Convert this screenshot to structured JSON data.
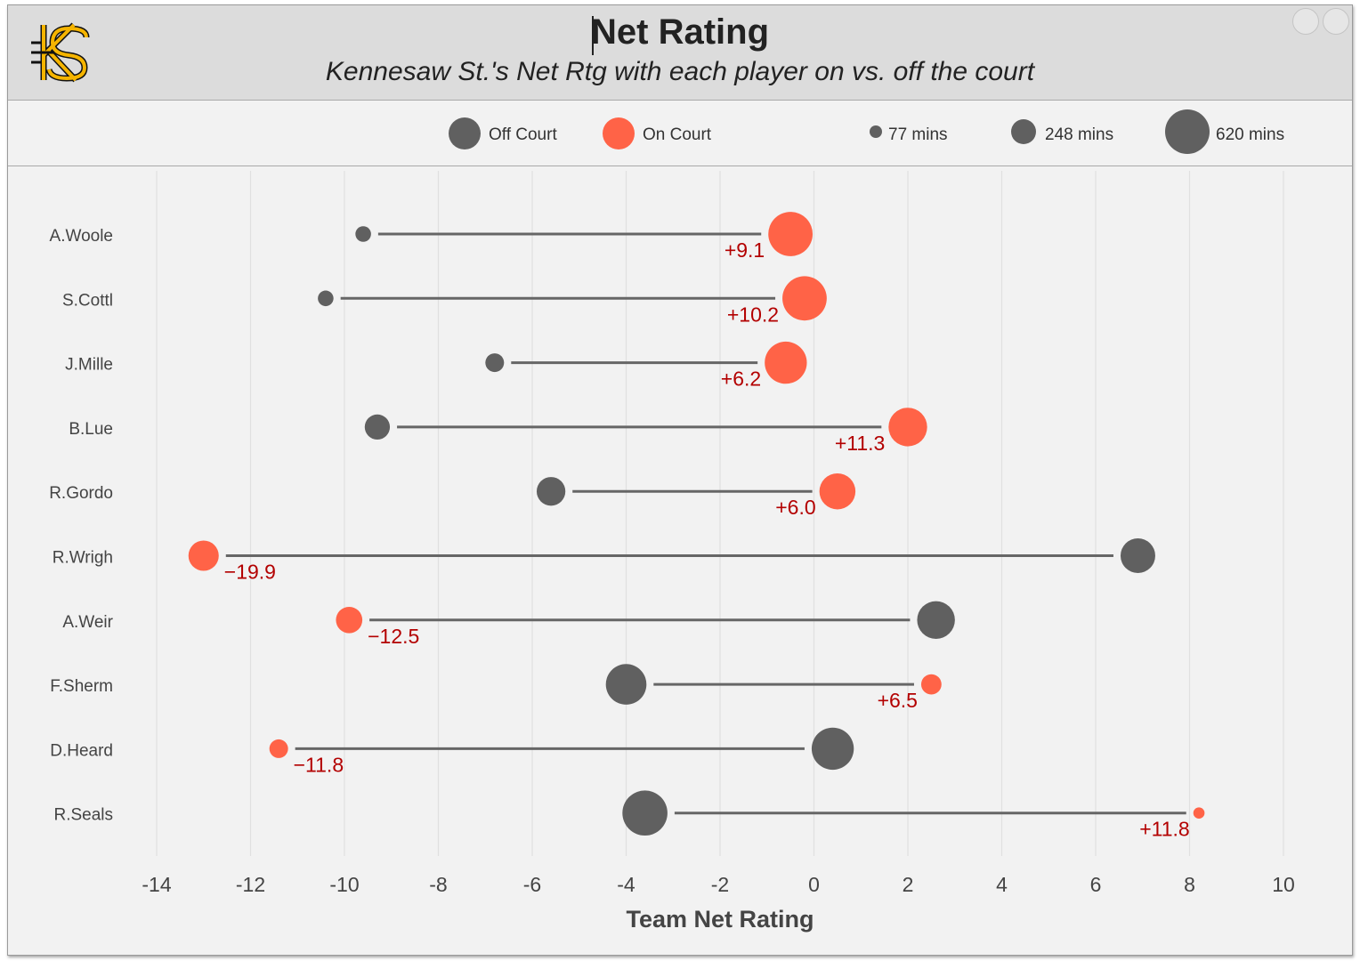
{
  "header": {
    "title": "Net Rating",
    "subtitle": "Kennesaw St.'s Net Rtg with each player on vs. off the court",
    "logo_icon": "kennesaw-state-ks-logo"
  },
  "legend": {
    "off_label": "Off Court",
    "on_label": "On Court",
    "size_labels": [
      "77 mins",
      "248 mins",
      "620 mins"
    ]
  },
  "colors": {
    "off": "#606060",
    "on": "#ff6347",
    "label": "#b30000",
    "grid": "#e0e0e0",
    "axis_text": "#444444"
  },
  "chart_data": {
    "type": "dumbbell",
    "xlabel": "Team Net Rating",
    "xlim": [
      -14,
      10
    ],
    "xticks": [
      -14,
      -12,
      -10,
      -8,
      -6,
      -4,
      -2,
      0,
      2,
      4,
      6,
      8,
      10
    ],
    "grid": true,
    "series": [
      {
        "name": "Off Court"
      },
      {
        "name": "On Court"
      }
    ],
    "players": [
      {
        "name": "A.Woole",
        "off": -9.6,
        "on": -0.5,
        "diff": "+9.1",
        "off_mins": 77,
        "on_mins": 620
      },
      {
        "name": "S.Cottl",
        "off": -10.4,
        "on": -0.2,
        "diff": "+10.2",
        "off_mins": 77,
        "on_mins": 620
      },
      {
        "name": "J.Mille",
        "off": -6.8,
        "on": -0.6,
        "diff": "+6.2",
        "off_mins": 110,
        "on_mins": 560
      },
      {
        "name": "B.Lue",
        "off": -9.3,
        "on": 2.0,
        "diff": "+11.3",
        "off_mins": 200,
        "on_mins": 470
      },
      {
        "name": "R.Gordo",
        "off": -5.6,
        "on": 0.5,
        "diff": "+6.0",
        "off_mins": 260,
        "on_mins": 410
      },
      {
        "name": "R.Wrigh",
        "off": 6.9,
        "on": -13.0,
        "diff": "−19.9",
        "off_mins": 380,
        "on_mins": 290
      },
      {
        "name": "A.Weir",
        "off": 2.6,
        "on": -9.9,
        "diff": "−12.5",
        "off_mins": 450,
        "on_mins": 220
      },
      {
        "name": "F.Sherm",
        "off": -4.0,
        "on": 2.5,
        "diff": "+6.5",
        "off_mins": 520,
        "on_mins": 130
      },
      {
        "name": "D.Heard",
        "off": 0.4,
        "on": -11.4,
        "diff": "−11.8",
        "off_mins": 560,
        "on_mins": 110
      },
      {
        "name": "R.Seals",
        "off": -3.6,
        "on": 8.2,
        "diff": "+11.8",
        "off_mins": 640,
        "on_mins": 40
      }
    ]
  }
}
